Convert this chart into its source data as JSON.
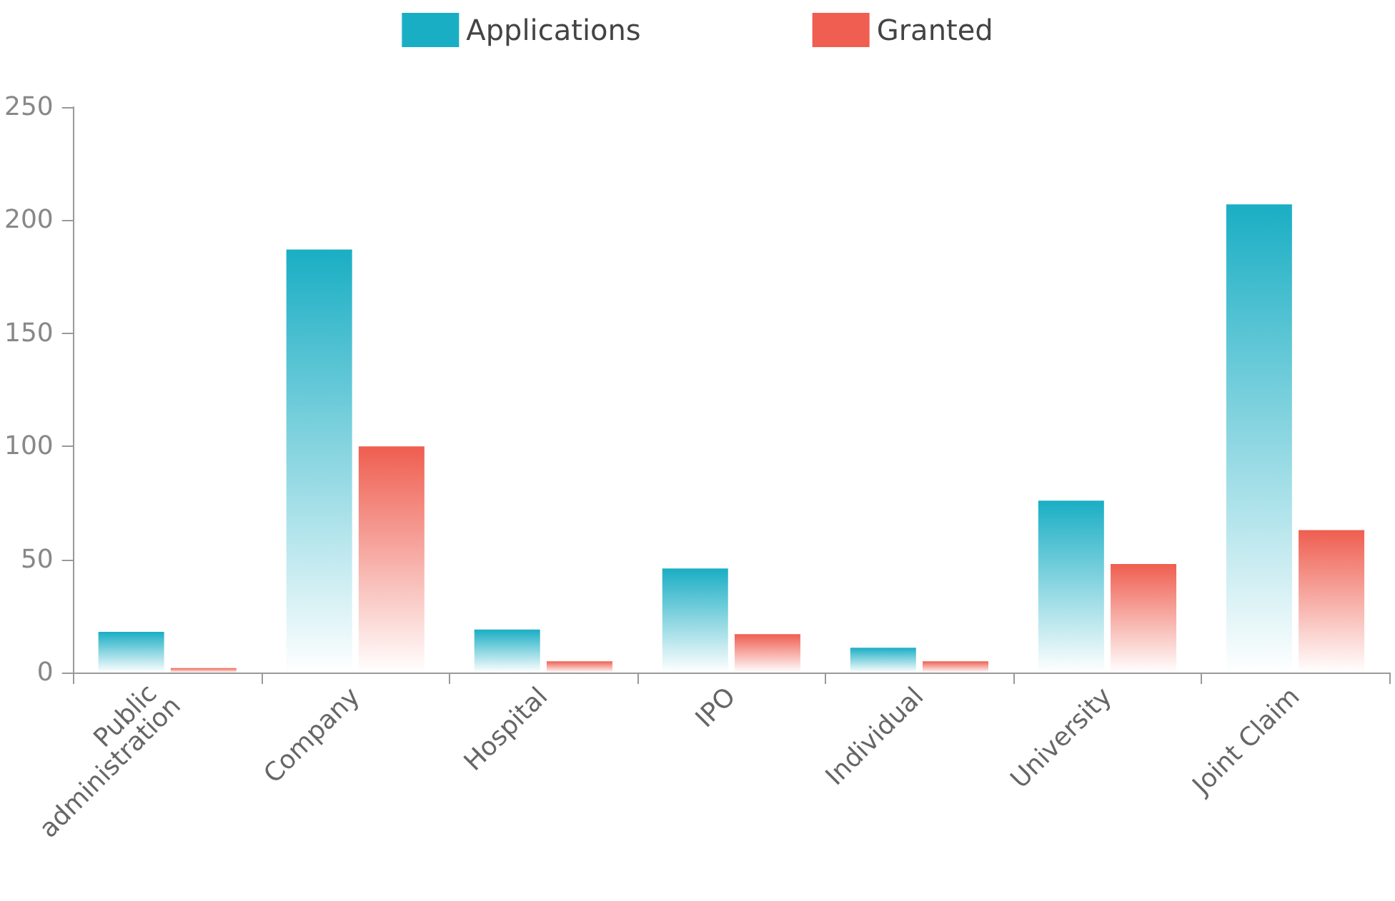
{
  "chart_data": {
    "type": "bar",
    "categories": [
      "Public administration",
      "Company",
      "Hospital",
      "IPO",
      "Individual",
      "University",
      "Joint Claim"
    ],
    "series": [
      {
        "name": "Applications",
        "color": "#1aaec4",
        "values": [
          18,
          187,
          19,
          46,
          11,
          76,
          207
        ]
      },
      {
        "name": "Granted",
        "color": "#ef5e50",
        "values": [
          2,
          100,
          5,
          17,
          5,
          48,
          63
        ]
      }
    ],
    "ylim": [
      0,
      250
    ],
    "yticks": [
      0,
      50,
      100,
      150,
      200,
      250
    ],
    "grid": false,
    "legend": "top"
  }
}
